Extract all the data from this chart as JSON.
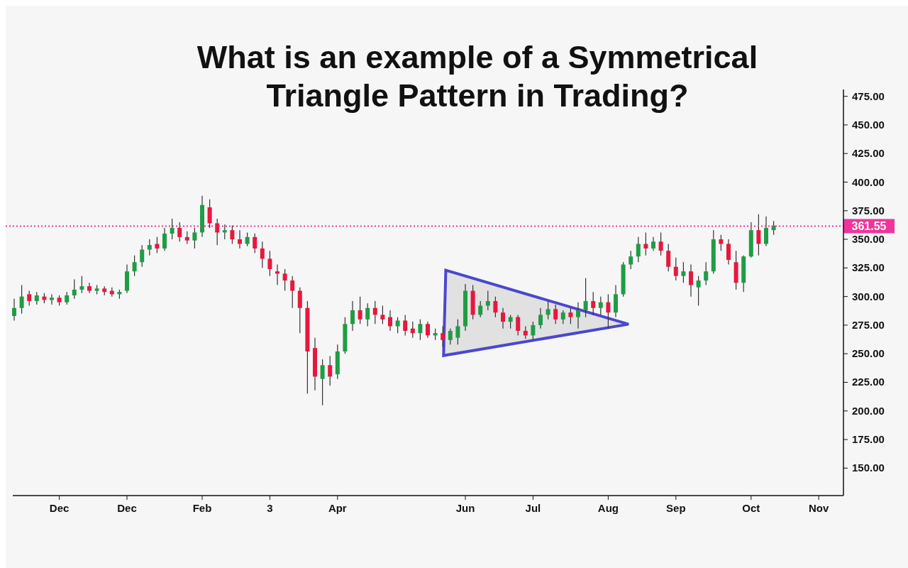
{
  "chart_data": {
    "type": "candlestick",
    "title": "What is an example of a Symmetrical Triangle Pattern in Trading?",
    "categories": [
      null,
      null,
      null,
      null,
      null,
      null,
      "Dec",
      null,
      null,
      null,
      null,
      null,
      null,
      null,
      null,
      "Dec",
      null,
      null,
      null,
      null,
      null,
      null,
      null,
      null,
      null,
      "Feb",
      null,
      null,
      null,
      null,
      null,
      null,
      null,
      null,
      "3",
      null,
      null,
      null,
      null,
      null,
      null,
      null,
      null,
      "Apr",
      null,
      null,
      null,
      null,
      null,
      null,
      null,
      null,
      null,
      null,
      null,
      null,
      null,
      null,
      null,
      null,
      "Jun",
      null,
      null,
      null,
      null,
      null,
      null,
      null,
      null,
      "Jul",
      null,
      null,
      null,
      null,
      null,
      null,
      null,
      null,
      null,
      "Aug",
      null,
      null,
      null,
      null,
      null,
      null,
      null,
      null,
      "Sep",
      null,
      null,
      null,
      null,
      null,
      null,
      null,
      null,
      null,
      "Oct",
      null,
      null,
      null,
      null,
      null,
      null,
      null,
      null,
      "Nov",
      null,
      null,
      null
    ],
    "ohlc": [
      [
        283,
        298,
        279,
        290
      ],
      [
        290,
        310,
        285,
        300
      ],
      [
        302,
        305,
        292,
        296
      ],
      [
        296,
        304,
        293,
        301
      ],
      [
        300,
        303,
        294,
        297
      ],
      [
        297,
        302,
        293,
        299
      ],
      [
        299,
        301,
        292,
        295
      ],
      [
        295,
        304,
        293,
        301
      ],
      [
        301,
        315,
        298,
        306
      ],
      [
        306,
        318,
        303,
        309
      ],
      [
        309,
        312,
        303,
        305
      ],
      [
        305,
        310,
        302,
        307
      ],
      [
        307,
        309,
        301,
        304
      ],
      [
        305,
        308,
        300,
        302
      ],
      [
        302,
        306,
        298,
        304
      ],
      [
        305,
        328,
        303,
        322
      ],
      [
        322,
        336,
        318,
        330
      ],
      [
        330,
        345,
        326,
        341
      ],
      [
        341,
        350,
        336,
        345
      ],
      [
        346,
        352,
        338,
        342
      ],
      [
        342,
        360,
        340,
        355
      ],
      [
        355,
        368,
        350,
        360
      ],
      [
        360,
        365,
        348,
        352
      ],
      [
        352,
        357,
        346,
        349
      ],
      [
        349,
        360,
        342,
        356
      ],
      [
        356,
        388,
        352,
        380
      ],
      [
        378,
        385,
        360,
        364
      ],
      [
        364,
        368,
        345,
        356
      ],
      [
        356,
        363,
        350,
        358
      ],
      [
        358,
        362,
        346,
        350
      ],
      [
        350,
        358,
        342,
        346
      ],
      [
        346,
        356,
        344,
        352
      ],
      [
        352,
        355,
        338,
        342
      ],
      [
        342,
        348,
        325,
        333
      ],
      [
        333,
        340,
        318,
        324
      ],
      [
        322,
        328,
        310,
        320
      ],
      [
        320,
        324,
        305,
        314
      ],
      [
        314,
        318,
        290,
        305
      ],
      [
        305,
        308,
        268,
        290
      ],
      [
        290,
        296,
        215,
        252
      ],
      [
        255,
        264,
        218,
        230
      ],
      [
        228,
        245,
        205,
        240
      ],
      [
        240,
        248,
        222,
        230
      ],
      [
        232,
        258,
        228,
        252
      ],
      [
        252,
        282,
        250,
        276
      ],
      [
        276,
        296,
        270,
        288
      ],
      [
        288,
        300,
        276,
        280
      ],
      [
        280,
        294,
        274,
        290
      ],
      [
        290,
        296,
        276,
        284
      ],
      [
        284,
        292,
        276,
        280
      ],
      [
        282,
        288,
        270,
        274
      ],
      [
        274,
        282,
        268,
        279
      ],
      [
        279,
        284,
        266,
        270
      ],
      [
        272,
        278,
        264,
        268
      ],
      [
        268,
        280,
        262,
        276
      ],
      [
        276,
        278,
        264,
        266
      ],
      [
        266,
        272,
        262,
        268
      ],
      [
        268,
        274,
        256,
        262
      ],
      [
        262,
        272,
        258,
        270
      ],
      [
        264,
        280,
        258,
        274
      ],
      [
        274,
        311,
        270,
        305
      ],
      [
        305,
        310,
        280,
        284
      ],
      [
        284,
        296,
        282,
        292
      ],
      [
        292,
        305,
        288,
        296
      ],
      [
        296,
        300,
        282,
        286
      ],
      [
        286,
        290,
        272,
        278
      ],
      [
        278,
        284,
        272,
        282
      ],
      [
        282,
        284,
        266,
        270
      ],
      [
        270,
        274,
        263,
        266
      ],
      [
        266,
        278,
        262,
        275
      ],
      [
        275,
        290,
        272,
        284
      ],
      [
        284,
        296,
        280,
        289
      ],
      [
        289,
        293,
        276,
        280
      ],
      [
        280,
        288,
        276,
        286
      ],
      [
        286,
        290,
        276,
        282
      ],
      [
        282,
        295,
        272,
        288
      ],
      [
        288,
        316,
        282,
        296
      ],
      [
        296,
        304,
        284,
        290
      ],
      [
        290,
        300,
        284,
        295
      ],
      [
        295,
        302,
        272,
        286
      ],
      [
        286,
        310,
        282,
        302
      ],
      [
        302,
        330,
        300,
        328
      ],
      [
        328,
        340,
        324,
        335
      ],
      [
        335,
        352,
        330,
        346
      ],
      [
        346,
        356,
        336,
        342
      ],
      [
        342,
        352,
        340,
        348
      ],
      [
        348,
        356,
        336,
        340
      ],
      [
        340,
        346,
        322,
        326
      ],
      [
        326,
        334,
        314,
        318
      ],
      [
        318,
        330,
        312,
        322
      ],
      [
        322,
        328,
        300,
        310
      ],
      [
        308,
        318,
        292,
        314
      ],
      [
        314,
        330,
        310,
        322
      ],
      [
        322,
        358,
        320,
        350
      ],
      [
        350,
        354,
        340,
        346
      ],
      [
        346,
        350,
        328,
        332
      ],
      [
        330,
        340,
        306,
        312
      ],
      [
        312,
        336,
        304,
        335
      ],
      [
        335,
        365,
        334,
        358
      ],
      [
        358,
        372,
        336,
        346
      ],
      [
        346,
        370,
        344,
        360
      ],
      [
        358,
        366,
        354,
        362
      ],
      null,
      null,
      null,
      null,
      null,
      null,
      null,
      null,
      null
    ],
    "ylim": [
      126,
      481
    ],
    "yticks": [
      {
        "value": 150,
        "label": "150.00"
      },
      {
        "value": 175,
        "label": "175.00"
      },
      {
        "value": 200,
        "label": "200.00"
      },
      {
        "value": 225,
        "label": "225.00"
      },
      {
        "value": 250,
        "label": "250.00"
      },
      {
        "value": 275,
        "label": "275.00"
      },
      {
        "value": 300,
        "label": "300.00"
      },
      {
        "value": 325,
        "label": "325.00"
      },
      {
        "value": 350,
        "label": "350.00"
      },
      {
        "value": 375,
        "label": "375.00"
      },
      {
        "value": 400,
        "label": "400.00"
      },
      {
        "value": 425,
        "label": "425.00"
      },
      {
        "value": 450,
        "label": "450.00"
      },
      {
        "value": 475,
        "label": "475.00"
      }
    ],
    "ref_lines": [
      {
        "axis": "y",
        "value": 361.55,
        "label": "361.55",
        "color": "#f0359a",
        "line_style": "dotted"
      }
    ],
    "grid": false
  }
}
